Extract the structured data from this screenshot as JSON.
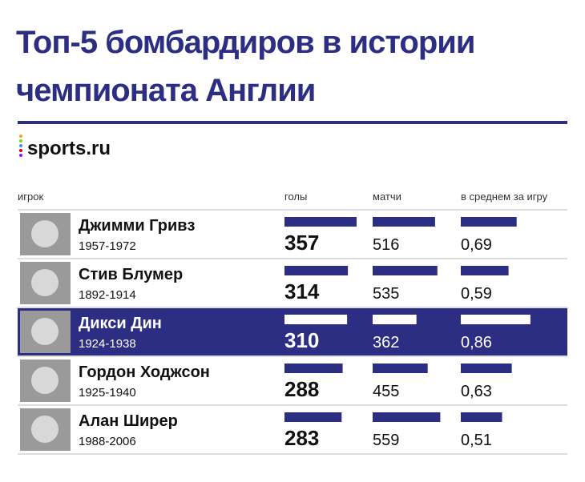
{
  "header": {
    "title_lines": [
      "Топ-5 бомбардиров в истории",
      "чемпионата Англии"
    ],
    "logo": "sports.ru"
  },
  "table": {
    "columns": [
      "игрок",
      "голы",
      "матчи",
      "в среднем за игру"
    ],
    "rows": [
      {
        "name": "Джимми Гривз",
        "years": "1957-1972",
        "goals": 357,
        "matches": 516,
        "average": {
          "value": 0.69,
          "label": "0,69"
        }
      },
      {
        "name": "Стив Блумер",
        "years": "1892-1914",
        "goals": 314,
        "matches": 535,
        "average": {
          "value": 0.59,
          "label": "0,59"
        }
      },
      {
        "name": "Дикси Дин",
        "years": "1924-1938",
        "goals": 310,
        "matches": 362,
        "average": {
          "value": 0.86,
          "label": "0,86"
        }
      },
      {
        "name": "Гордон Ходжсон",
        "years": "1925-1940",
        "goals": 288,
        "matches": 455,
        "average": {
          "value": 0.63,
          "label": "0,63"
        }
      },
      {
        "name": "Алан Ширер",
        "years": "1988-2006",
        "goals": 283,
        "matches": 559,
        "average": {
          "value": 0.51,
          "label": "0,51"
        }
      }
    ]
  }
}
